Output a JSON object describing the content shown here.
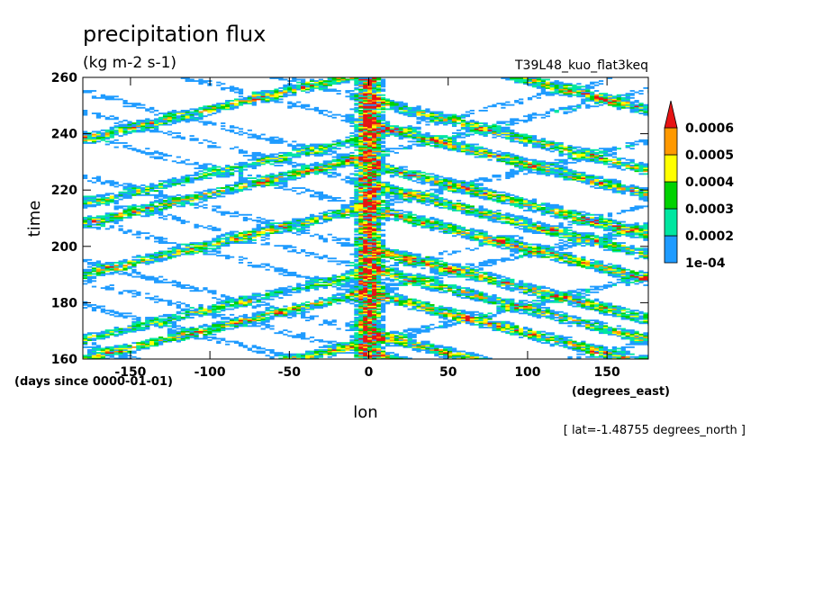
{
  "chart_data": {
    "type": "heatmap",
    "title": "precipitation flux",
    "subtitle": "(kg m-2 s-1)",
    "dataset": "T39L48_kuo_flat3keq",
    "xlabel": "lon",
    "ylabel": "time",
    "x_unit_label": "(degrees_east)",
    "y_unit_label": "(days since 0000-01-01)",
    "footnote": "[ lat=-1.48755 degrees_north ]",
    "xlim": [
      -180,
      176
    ],
    "ylim": [
      160,
      260
    ],
    "xticks": [
      -150,
      -100,
      -50,
      0,
      50,
      100,
      150
    ],
    "xtick_labels": [
      "-150",
      "-100",
      "-50",
      "0",
      "50",
      "100",
      "150"
    ],
    "yticks": [
      160,
      180,
      200,
      220,
      240,
      260
    ],
    "ytick_labels": [
      "160",
      "180",
      "200",
      "220",
      "240",
      "260"
    ],
    "colorbar": {
      "levels": [
        0.0001,
        0.0002,
        0.0003,
        0.0004,
        0.0005,
        0.0006
      ],
      "labels": [
        "1e-04",
        "0.0002",
        "0.0003",
        "0.0004",
        "0.0005",
        "0.0006"
      ],
      "colors": [
        "#1e9bff",
        "#00e6a0",
        "#00d200",
        "#ffff00",
        "#ff9900",
        "#e61414"
      ],
      "extend": "max"
    },
    "features": {
      "stationary_band": {
        "lon": 0,
        "t_range": [
          160,
          260
        ],
        "peak": 0.0007
      },
      "eastward_bands": [
        {
          "t_start": 160,
          "lon_start": -180,
          "slope_deg_per_day": 7.5,
          "amp": 0.0004
        },
        {
          "t_start": 190,
          "lon_start": -180,
          "slope_deg_per_day": 7.5,
          "amp": 0.0004
        },
        {
          "t_start": 215,
          "lon_start": -180,
          "slope_deg_per_day": 7.5,
          "amp": 0.0003
        }
      ],
      "westward_bands": [
        {
          "t_start": 205,
          "lon_start": 60,
          "slope_deg_per_day": -7,
          "amp": 0.00045
        },
        {
          "t_start": 185,
          "lon_start": 50,
          "slope_deg_per_day": -7,
          "amp": 0.0004
        },
        {
          "t_start": 165,
          "lon_start": 30,
          "slope_deg_per_day": -7,
          "amp": 0.00045
        }
      ]
    }
  }
}
